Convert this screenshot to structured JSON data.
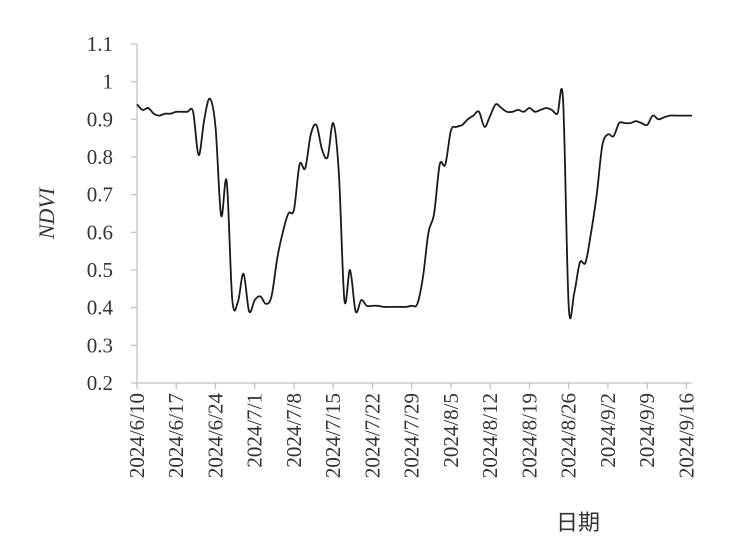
{
  "chart_data": {
    "type": "line",
    "xlabel": "日期",
    "ylabel": "NDVI",
    "ylim": [
      0.2,
      1.1
    ],
    "yticks": [
      "0.2",
      "0.3",
      "0.4",
      "0.5",
      "0.6",
      "0.7",
      "0.8",
      "0.9",
      "1",
      "1.1"
    ],
    "xlim": [
      "2024/6/10",
      "2024/9/17"
    ],
    "xticks": [
      "2024/6/10",
      "2024/6/17",
      "2024/6/24",
      "2024/7/1",
      "2024/7/8",
      "2024/7/15",
      "2024/7/22",
      "2024/7/29",
      "2024/8/5",
      "2024/8/12",
      "2024/8/19",
      "2024/8/26",
      "2024/9/2",
      "2024/9/9",
      "2024/9/16"
    ],
    "series": [
      {
        "x": [
          "2024/6/10",
          "2024/6/11",
          "2024/6/12",
          "2024/6/13",
          "2024/6/14",
          "2024/6/15",
          "2024/6/16",
          "2024/6/17",
          "2024/6/18",
          "2024/6/19",
          "2024/6/20",
          "2024/6/21",
          "2024/6/22",
          "2024/6/23",
          "2024/6/24",
          "2024/6/25",
          "2024/6/26",
          "2024/6/27",
          "2024/6/28",
          "2024/6/29",
          "2024/6/30",
          "2024/7/1",
          "2024/7/2",
          "2024/7/3",
          "2024/7/4",
          "2024/7/5",
          "2024/7/6",
          "2024/7/7",
          "2024/7/8",
          "2024/7/9",
          "2024/7/10",
          "2024/7/11",
          "2024/7/12",
          "2024/7/13",
          "2024/7/14",
          "2024/7/15",
          "2024/7/16",
          "2024/7/17",
          "2024/7/18",
          "2024/7/19",
          "2024/7/20",
          "2024/7/21",
          "2024/7/22",
          "2024/7/23",
          "2024/7/24",
          "2024/7/25",
          "2024/7/26",
          "2024/7/27",
          "2024/7/28",
          "2024/7/29",
          "2024/7/30",
          "2024/7/31",
          "2024/8/1",
          "2024/8/2",
          "2024/8/3",
          "2024/8/4",
          "2024/8/5",
          "2024/8/6",
          "2024/8/7",
          "2024/8/8",
          "2024/8/9",
          "2024/8/10",
          "2024/8/11",
          "2024/8/12",
          "2024/8/13",
          "2024/8/14",
          "2024/8/15",
          "2024/8/16",
          "2024/8/17",
          "2024/8/18",
          "2024/8/19",
          "2024/8/20",
          "2024/8/21",
          "2024/8/22",
          "2024/8/23",
          "2024/8/24",
          "2024/8/25",
          "2024/8/26",
          "2024/8/27",
          "2024/8/28",
          "2024/8/29",
          "2024/8/30",
          "2024/8/31",
          "2024/9/1",
          "2024/9/2",
          "2024/9/3",
          "2024/9/4",
          "2024/9/5",
          "2024/9/6",
          "2024/9/7",
          "2024/9/8",
          "2024/9/9",
          "2024/9/10",
          "2024/9/11",
          "2024/9/12",
          "2024/9/13",
          "2024/9/14",
          "2024/9/15",
          "2024/9/16",
          "2024/9/17"
        ],
        "values": [
          0.94,
          0.925,
          0.93,
          0.915,
          0.91,
          0.915,
          0.915,
          0.92,
          0.92,
          0.92,
          0.92,
          0.805,
          0.9,
          0.955,
          0.88,
          0.645,
          0.735,
          0.42,
          0.415,
          0.49,
          0.39,
          0.42,
          0.43,
          0.41,
          0.43,
          0.53,
          0.6,
          0.65,
          0.66,
          0.78,
          0.77,
          0.86,
          0.885,
          0.82,
          0.8,
          0.89,
          0.76,
          0.42,
          0.5,
          0.39,
          0.42,
          0.405,
          0.405,
          0.405,
          0.402,
          0.402,
          0.402,
          0.402,
          0.402,
          0.405,
          0.41,
          0.48,
          0.6,
          0.65,
          0.78,
          0.78,
          0.87,
          0.88,
          0.885,
          0.9,
          0.91,
          0.92,
          0.88,
          0.91,
          0.94,
          0.93,
          0.92,
          0.92,
          0.925,
          0.92,
          0.93,
          0.92,
          0.925,
          0.93,
          0.925,
          0.915,
          0.95,
          0.405,
          0.44,
          0.52,
          0.52,
          0.6,
          0.7,
          0.83,
          0.86,
          0.855,
          0.89,
          0.89,
          0.89,
          0.895,
          0.89,
          0.885,
          0.91,
          0.9,
          0.905,
          0.91,
          0.91,
          0.91,
          0.91,
          0.91
        ]
      }
    ]
  }
}
